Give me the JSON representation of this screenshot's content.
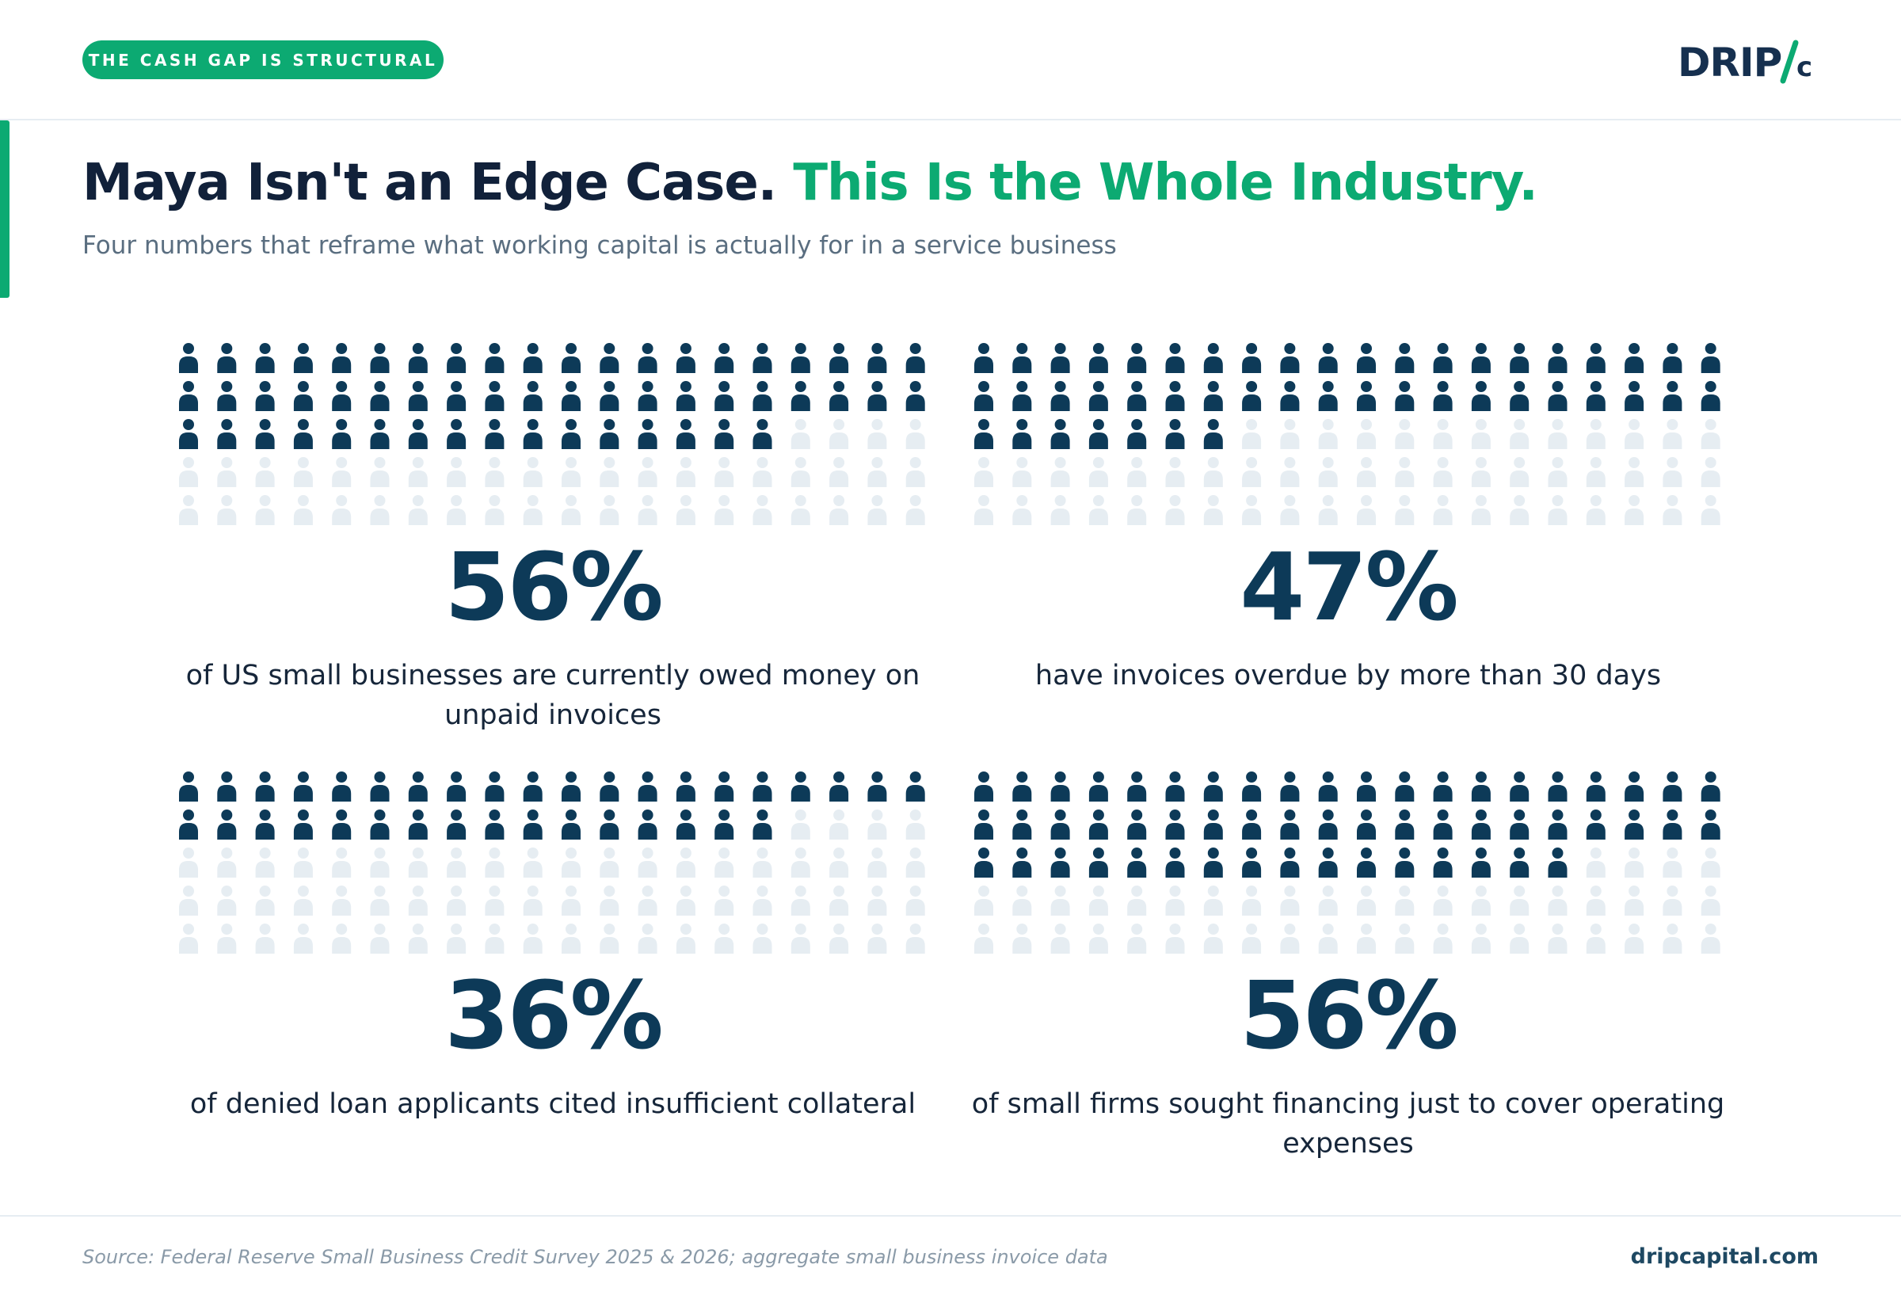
{
  "header": {
    "badge": "THE CASH GAP IS STRUCTURAL",
    "logo_text": "DRIP/c"
  },
  "title": {
    "part1": "Maya Isn't an Edge Case.",
    "part2": "This Is the Whole Industry."
  },
  "subtitle": "Four numbers that reframe what working capital is actually for in a service business",
  "stats": [
    {
      "value": "56%",
      "percent": 56,
      "description": "of US small businesses are currently owed money on unpaid invoices"
    },
    {
      "value": "47%",
      "percent": 47,
      "description": "have invoices overdue by more than 30 days"
    },
    {
      "value": "36%",
      "percent": 36,
      "description": "of denied loan applicants cited insufficient collateral"
    },
    {
      "value": "56%",
      "percent": 56,
      "description": "of small firms sought financing just to cover operating expenses"
    }
  ],
  "icon_grid": {
    "icon": "person-icon",
    "columns": 20,
    "rows": 5,
    "total": 100
  },
  "footer": {
    "source": "Source: Federal Reserve Small Business Credit Survey 2025 & 2026; aggregate small business invoice data",
    "site": "dripcapital.com"
  },
  "colors": {
    "accent_green": "#0caa72",
    "navy": "#0d3a58",
    "title_dark": "#11213a",
    "icon_filled": "#0d3a58",
    "icon_empty": "#e6edf2"
  }
}
